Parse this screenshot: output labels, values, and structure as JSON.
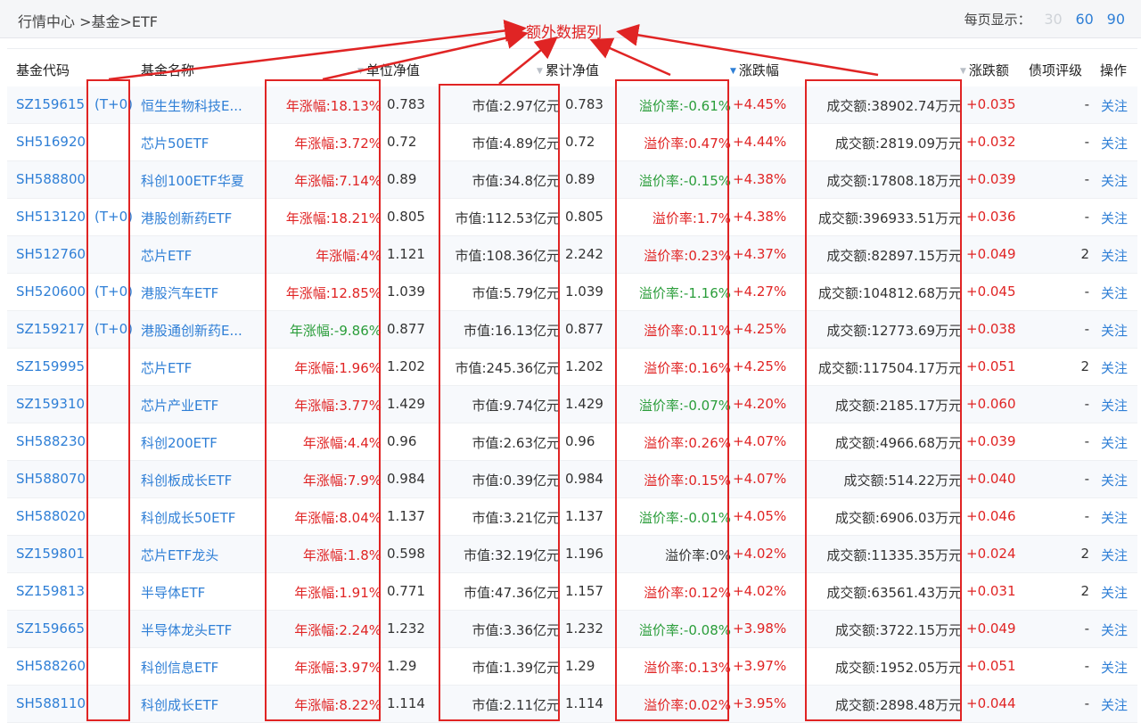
{
  "breadcrumb": "行情中心 >基金>ETF",
  "pagesize": {
    "label": "每页显示：",
    "options": [
      "30",
      "60",
      "90"
    ]
  },
  "annotation": "额外数据列",
  "headers": {
    "code": "基金代码",
    "name": "基金名称",
    "nav": "单位净值",
    "acc_nav": "累计净值",
    "change_pct": "涨跌幅",
    "change_amt": "涨跌额",
    "rating": "债项评级",
    "action": "操作"
  },
  "rows": [
    {
      "code": "SZ159615",
      "t0": "(T+0)",
      "name": "恒生生物科技E...",
      "ytd": "年涨幅:18.13%",
      "ytd_color": "red",
      "nav": "0.783",
      "mcap": "市值:2.97亿元",
      "acc": "0.783",
      "prem": "溢价率:-0.61%",
      "prem_color": "green",
      "pct": "+4.45%",
      "vol": "成交额:38902.74万元",
      "amt": "+0.035",
      "rating": "-",
      "action": "关注"
    },
    {
      "code": "SH516920",
      "t0": "",
      "name": "芯片50ETF",
      "ytd": "年涨幅:3.72%",
      "ytd_color": "red",
      "nav": "0.72",
      "mcap": "市值:4.89亿元",
      "acc": "0.72",
      "prem": "溢价率:0.47%",
      "prem_color": "red",
      "pct": "+4.44%",
      "vol": "成交额:2819.09万元",
      "amt": "+0.032",
      "rating": "-",
      "action": "关注"
    },
    {
      "code": "SH588800",
      "t0": "",
      "name": "科创100ETF华夏",
      "ytd": "年涨幅:7.14%",
      "ytd_color": "red",
      "nav": "0.89",
      "mcap": "市值:34.8亿元",
      "acc": "0.89",
      "prem": "溢价率:-0.15%",
      "prem_color": "green",
      "pct": "+4.38%",
      "vol": "成交额:17808.18万元",
      "amt": "+0.039",
      "rating": "-",
      "action": "关注"
    },
    {
      "code": "SH513120",
      "t0": "(T+0)",
      "name": "港股创新药ETF",
      "ytd": "年涨幅:18.21%",
      "ytd_color": "red",
      "nav": "0.805",
      "mcap": "市值:112.53亿元",
      "acc": "0.805",
      "prem": "溢价率:1.7%",
      "prem_color": "red",
      "pct": "+4.38%",
      "vol": "成交额:396933.51万元",
      "amt": "+0.036",
      "rating": "-",
      "action": "关注"
    },
    {
      "code": "SH512760",
      "t0": "",
      "name": "芯片ETF",
      "ytd": "年涨幅:4%",
      "ytd_color": "red",
      "nav": "1.121",
      "mcap": "市值:108.36亿元",
      "acc": "2.242",
      "prem": "溢价率:0.23%",
      "prem_color": "red",
      "pct": "+4.37%",
      "vol": "成交额:82897.15万元",
      "amt": "+0.049",
      "rating": "2",
      "action": "关注"
    },
    {
      "code": "SH520600",
      "t0": "(T+0)",
      "name": "港股汽车ETF",
      "ytd": "年涨幅:12.85%",
      "ytd_color": "red",
      "nav": "1.039",
      "mcap": "市值:5.79亿元",
      "acc": "1.039",
      "prem": "溢价率:-1.16%",
      "prem_color": "green",
      "pct": "+4.27%",
      "vol": "成交额:104812.68万元",
      "amt": "+0.045",
      "rating": "-",
      "action": "关注"
    },
    {
      "code": "SZ159217",
      "t0": "(T+0)",
      "name": "港股通创新药E...",
      "ytd": "年涨幅:-9.86%",
      "ytd_color": "green",
      "nav": "0.877",
      "mcap": "市值:16.13亿元",
      "acc": "0.877",
      "prem": "溢价率:0.11%",
      "prem_color": "red",
      "pct": "+4.25%",
      "vol": "成交额:12773.69万元",
      "amt": "+0.038",
      "rating": "-",
      "action": "关注"
    },
    {
      "code": "SZ159995",
      "t0": "",
      "name": "芯片ETF",
      "ytd": "年涨幅:1.96%",
      "ytd_color": "red",
      "nav": "1.202",
      "mcap": "市值:245.36亿元",
      "acc": "1.202",
      "prem": "溢价率:0.16%",
      "prem_color": "red",
      "pct": "+4.25%",
      "vol": "成交额:117504.17万元",
      "amt": "+0.051",
      "rating": "2",
      "action": "关注"
    },
    {
      "code": "SZ159310",
      "t0": "",
      "name": "芯片产业ETF",
      "ytd": "年涨幅:3.77%",
      "ytd_color": "red",
      "nav": "1.429",
      "mcap": "市值:9.74亿元",
      "acc": "1.429",
      "prem": "溢价率:-0.07%",
      "prem_color": "green",
      "pct": "+4.20%",
      "vol": "成交额:2185.17万元",
      "amt": "+0.060",
      "rating": "-",
      "action": "关注"
    },
    {
      "code": "SH588230",
      "t0": "",
      "name": "科创200ETF",
      "ytd": "年涨幅:4.4%",
      "ytd_color": "red",
      "nav": "0.96",
      "mcap": "市值:2.63亿元",
      "acc": "0.96",
      "prem": "溢价率:0.26%",
      "prem_color": "red",
      "pct": "+4.07%",
      "vol": "成交额:4966.68万元",
      "amt": "+0.039",
      "rating": "-",
      "action": "关注"
    },
    {
      "code": "SH588070",
      "t0": "",
      "name": "科创板成长ETF",
      "ytd": "年涨幅:7.9%",
      "ytd_color": "red",
      "nav": "0.984",
      "mcap": "市值:0.39亿元",
      "acc": "0.984",
      "prem": "溢价率:0.15%",
      "prem_color": "red",
      "pct": "+4.07%",
      "vol": "成交额:514.22万元",
      "amt": "+0.040",
      "rating": "-",
      "action": "关注"
    },
    {
      "code": "SH588020",
      "t0": "",
      "name": "科创成长50ETF",
      "ytd": "年涨幅:8.04%",
      "ytd_color": "red",
      "nav": "1.137",
      "mcap": "市值:3.21亿元",
      "acc": "1.137",
      "prem": "溢价率:-0.01%",
      "prem_color": "green",
      "pct": "+4.05%",
      "vol": "成交额:6906.03万元",
      "amt": "+0.046",
      "rating": "-",
      "action": "关注"
    },
    {
      "code": "SZ159801",
      "t0": "",
      "name": "芯片ETF龙头",
      "ytd": "年涨幅:1.8%",
      "ytd_color": "red",
      "nav": "0.598",
      "mcap": "市值:32.19亿元",
      "acc": "1.196",
      "prem": "溢价率:0%",
      "prem_color": "dark",
      "pct": "+4.02%",
      "vol": "成交额:11335.35万元",
      "amt": "+0.024",
      "rating": "2",
      "action": "关注"
    },
    {
      "code": "SZ159813",
      "t0": "",
      "name": "半导体ETF",
      "ytd": "年涨幅:1.91%",
      "ytd_color": "red",
      "nav": "0.771",
      "mcap": "市值:47.36亿元",
      "acc": "1.157",
      "prem": "溢价率:0.12%",
      "prem_color": "red",
      "pct": "+4.02%",
      "vol": "成交额:63561.43万元",
      "amt": "+0.031",
      "rating": "2",
      "action": "关注"
    },
    {
      "code": "SZ159665",
      "t0": "",
      "name": "半导体龙头ETF",
      "ytd": "年涨幅:2.24%",
      "ytd_color": "red",
      "nav": "1.232",
      "mcap": "市值:3.36亿元",
      "acc": "1.232",
      "prem": "溢价率:-0.08%",
      "prem_color": "green",
      "pct": "+3.98%",
      "vol": "成交额:3722.15万元",
      "amt": "+0.049",
      "rating": "-",
      "action": "关注"
    },
    {
      "code": "SH588260",
      "t0": "",
      "name": "科创信息ETF",
      "ytd": "年涨幅:3.97%",
      "ytd_color": "red",
      "nav": "1.29",
      "mcap": "市值:1.39亿元",
      "acc": "1.29",
      "prem": "溢价率:0.13%",
      "prem_color": "red",
      "pct": "+3.97%",
      "vol": "成交额:1952.05万元",
      "amt": "+0.051",
      "rating": "-",
      "action": "关注"
    },
    {
      "code": "SH588110",
      "t0": "",
      "name": "科创成长ETF",
      "ytd": "年涨幅:8.22%",
      "ytd_color": "red",
      "nav": "1.114",
      "mcap": "市值:2.11亿元",
      "acc": "1.114",
      "prem": "溢价率:0.02%",
      "prem_color": "red",
      "pct": "+3.95%",
      "vol": "成交额:2898.48万元",
      "amt": "+0.044",
      "rating": "-",
      "action": "关注"
    }
  ]
}
